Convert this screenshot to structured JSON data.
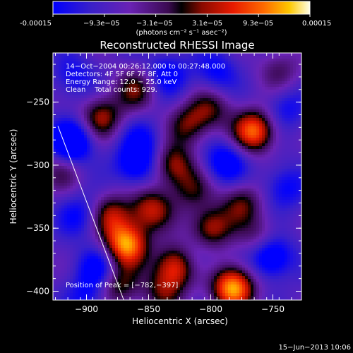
{
  "chart_data": {
    "type": "heatmap",
    "title": "Reconstructed RHESSI Image",
    "xlabel": "Heliocentric X (arcsec)",
    "ylabel": "Heliocentric Y (arcsec)",
    "xlim": [
      -927,
      -727
    ],
    "ylim": [
      -407,
      -211
    ],
    "xticks": [
      -900,
      -850,
      -800,
      -750
    ],
    "xtick_labels": [
      "−900",
      "−850",
      "−800",
      "−750"
    ],
    "yticks": [
      -250,
      -300,
      -350,
      -400
    ],
    "ytick_labels": [
      "−250",
      "−300",
      "−350",
      "−400"
    ],
    "colorbar": {
      "range": [
        -0.00015,
        0.00015
      ],
      "tick_labels": [
        "-0.00015",
        "−9.3e−05",
        "−3.1e−05",
        "3.1e−05",
        "9.3e−05",
        "0.00015"
      ],
      "unit_label": "(photons cm⁻² s⁻¹ asec⁻²)"
    },
    "annotations": [
      "14−Oct−2004 00:26:12.000 to 00:27:48.000",
      "Detectors: 4F 5F 6F 7F 8F, Att 0",
      "Energy Range: 12.0 − 25.0 keV",
      "Clean    Total counts: 929."
    ],
    "peak_label": "Position of Peak = [−782,−397]",
    "peak": [
      -782,
      -397
    ],
    "limb_line": [
      [
        -923,
        -269
      ],
      [
        -870,
        -407
      ]
    ],
    "blobs": [
      {
        "x": -782,
        "y": -397,
        "v": 1.0
      },
      {
        "x": -868,
        "y": -363,
        "v": 0.95
      },
      {
        "x": -765,
        "y": -273,
        "v": 0.85
      },
      {
        "x": -828,
        "y": -380,
        "v": 0.75
      },
      {
        "x": -800,
        "y": -350,
        "v": 0.6
      },
      {
        "x": -830,
        "y": -300,
        "v": 0.55
      },
      {
        "x": -848,
        "y": -335,
        "v": 0.6
      },
      {
        "x": -888,
        "y": -262,
        "v": 0.55
      },
      {
        "x": -880,
        "y": -340,
        "v": 0.55
      },
      {
        "x": -818,
        "y": -268,
        "v": 0.45
      },
      {
        "x": -800,
        "y": -255,
        "v": 0.4
      },
      {
        "x": -775,
        "y": -330,
        "v": 0.45
      },
      {
        "x": -760,
        "y": -358,
        "v": 0.35
      },
      {
        "x": -815,
        "y": -320,
        "v": 0.35
      },
      {
        "x": -838,
        "y": -400,
        "v": 0.4
      },
      {
        "x": -875,
        "y": -395,
        "v": 0.5
      },
      {
        "x": -860,
        "y": -240,
        "v": 0.45
      },
      {
        "x": -745,
        "y": -225,
        "v": 0.3
      },
      {
        "x": -920,
        "y": -305,
        "v": 0.3
      },
      {
        "x": -912,
        "y": -282,
        "v": -0.7
      },
      {
        "x": -860,
        "y": -300,
        "v": -0.5
      },
      {
        "x": -835,
        "y": -228,
        "v": -0.4
      },
      {
        "x": -788,
        "y": -298,
        "v": -0.5
      },
      {
        "x": -752,
        "y": -372,
        "v": -0.65
      },
      {
        "x": -890,
        "y": -382,
        "v": -0.45
      },
      {
        "x": -905,
        "y": -340,
        "v": -0.35
      },
      {
        "x": -795,
        "y": -227,
        "v": -0.35
      },
      {
        "x": -741,
        "y": -318,
        "v": -0.35
      },
      {
        "x": -855,
        "y": -280,
        "v": -0.3
      },
      {
        "x": -910,
        "y": -230,
        "v": -0.3
      },
      {
        "x": -812,
        "y": -375,
        "v": -0.25
      },
      {
        "x": -740,
        "y": -255,
        "v": -0.3
      },
      {
        "x": -900,
        "y": -405,
        "v": -0.3
      }
    ]
  },
  "timestamp": "15−Jun−2013 10:06"
}
